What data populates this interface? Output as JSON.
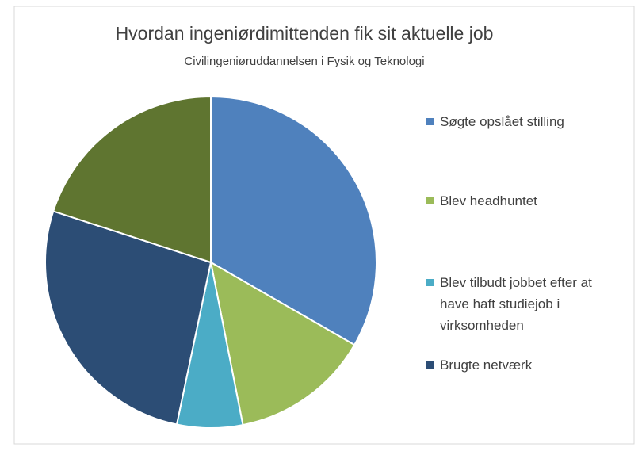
{
  "chart_data": {
    "type": "pie",
    "title": "Hvordan ingeniørdimittenden fik sit aktuelle job",
    "subtitle": "Civilingeniøruddannelsen i Fysik og Teknologi",
    "categories": [
      "Søgte opslået stilling",
      "Blev headhuntet",
      "Blev tilbudt jobbet efter at have haft studiejob i virksomheden",
      "Brugte netværk",
      null
    ],
    "values": [
      33.3,
      13.6,
      6.4,
      26.7,
      20.0
    ],
    "colors": [
      "#4f81bd",
      "#9bbb59",
      "#4bacc6",
      "#2c4d75",
      "#5f7530"
    ],
    "legend": "right"
  }
}
